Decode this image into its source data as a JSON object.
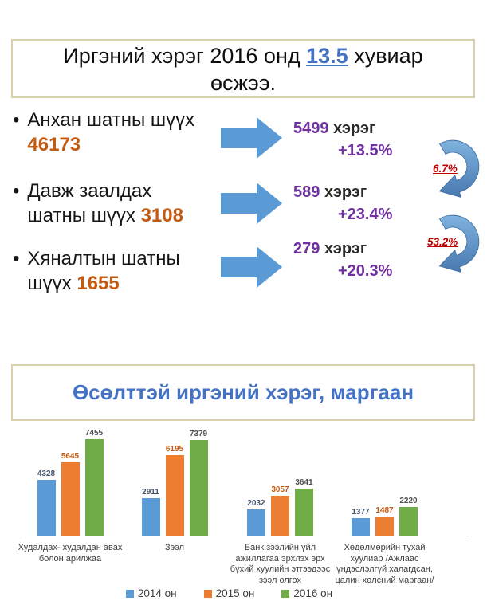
{
  "slide": {
    "title": {
      "prefix": "Иргэний хэрэг 2016 онд ",
      "highlight": "13.5",
      "suffix": " хувиар өсжээ."
    },
    "court_levels": [
      {
        "label_line1": "Анхан шатны шүүх",
        "label_line2": "",
        "total": "46173",
        "cases": "5499",
        "unit": "хэрэг",
        "growth": "+13.5%"
      },
      {
        "label_line1": "Давж заалдах",
        "label_line2": "шатны шүүх ",
        "total": "3108",
        "cases": "589",
        "unit": "хэрэг",
        "growth": "+23.4%"
      },
      {
        "label_line1": "Хяналтын шатны",
        "label_line2": "шүүх ",
        "total": "1655",
        "cases": "279",
        "unit": "хэрэг",
        "growth": "+20.3%"
      }
    ],
    "transfer_rates": [
      "6.7%",
      "53.2%"
    ],
    "chart_title": "Өсөлттэй иргэний хэрэг, маргаан"
  },
  "chart_data": {
    "type": "bar",
    "title": "Өсөлттэй иргэний хэрэг, маргаан",
    "categories": [
      "Худалдах- худалдан авах болон арилжаа",
      "Зээл",
      "Банк зээлийн үйл ажиллагаа эрхлэх эрх бүхий хуулийн этгээдээс зээл олгох",
      "Хөдөлмөрийн тухай хуулиар  /Ажлаас үндэслэлгүй халагдсан, цалин хөлсний маргаан/"
    ],
    "series": [
      {
        "name": "2014 он",
        "color": "#5B9BD5",
        "label_color": "#44546A",
        "values": [
          4328,
          2911,
          2032,
          1377
        ]
      },
      {
        "name": "2015 он",
        "color": "#ED7D31",
        "label_color": "#C55A11",
        "values": [
          5645,
          6195,
          3057,
          1487
        ]
      },
      {
        "name": "2016 он",
        "color": "#70AD47",
        "label_color": "#505050",
        "values": [
          7455,
          7379,
          3641,
          2220
        ]
      }
    ],
    "xlabel": "",
    "ylabel": "",
    "ylim": [
      0,
      7455
    ],
    "grid": false,
    "data_labels": true,
    "legend_position": "bottom"
  },
  "colors": {
    "arrow_blue": "#5B9BD5",
    "accent_orange": "#C55A11",
    "stat_purple": "#7030A0",
    "rate_red": "#C00000",
    "title_blue": "#4472C4",
    "box_border": "#DBD0AE"
  }
}
